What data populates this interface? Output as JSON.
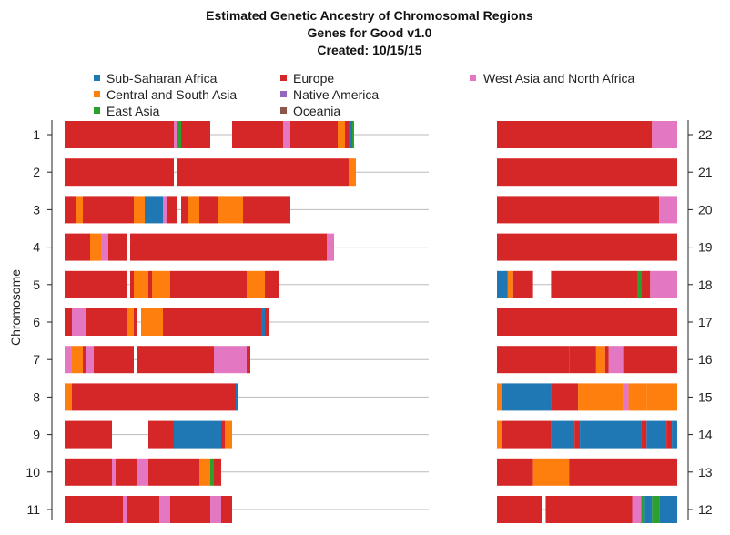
{
  "chart_data": {
    "type": "ancestry-karyogram",
    "title": [
      "Estimated Genetic Ancestry of Chromosomal Regions",
      "Genes for Good v1.0",
      "Created: 10/15/15"
    ],
    "ylabel": "Chromosome",
    "left_axis_ticks": [
      "1",
      "2",
      "3",
      "4",
      "5",
      "6",
      "7",
      "8",
      "9",
      "10",
      "11"
    ],
    "right_axis_ticks": [
      "22",
      "21",
      "20",
      "19",
      "18",
      "17",
      "16",
      "15",
      "14",
      "13",
      "12"
    ],
    "legend": [
      {
        "key": "afr",
        "label": "Sub-Saharan Africa",
        "color": "#1f77b4"
      },
      {
        "key": "eur",
        "label": "Europe",
        "color": "#d62728"
      },
      {
        "key": "was",
        "label": "West Asia and North Africa",
        "color": "#e377c2"
      },
      {
        "key": "csa",
        "label": "Central and South Asia",
        "color": "#ff7f0e"
      },
      {
        "key": "nam",
        "label": "Native America",
        "color": "#9467bd"
      },
      {
        "key": "eas",
        "label": "East Asia",
        "color": "#2ca02c"
      },
      {
        "key": "oce",
        "label": "Oceania",
        "color": "#8c564b"
      }
    ],
    "rows": [
      {
        "left": {
          "chrom": "1",
          "segments": [
            [
              0.0,
              0.3,
              "eur"
            ],
            [
              0.3,
              0.31,
              "was"
            ],
            [
              0.31,
              0.32,
              "eas"
            ],
            [
              0.32,
              0.4,
              "eur"
            ],
            [
              0.46,
              0.6,
              "eur"
            ],
            [
              0.6,
              0.62,
              "was"
            ],
            [
              0.62,
              0.75,
              "eur"
            ],
            [
              0.75,
              0.77,
              "csa"
            ],
            [
              0.77,
              0.78,
              "eur"
            ],
            [
              0.78,
              0.79,
              "afr"
            ],
            [
              0.79,
              0.795,
              "eas"
            ]
          ]
        },
        "right": {
          "chrom": "22",
          "segments": [
            [
              0.0,
              0.86,
              "eur"
            ],
            [
              0.86,
              1.0,
              "was"
            ]
          ]
        }
      },
      {
        "left": {
          "chrom": "2",
          "segments": [
            [
              0.0,
              0.3,
              "eur"
            ],
            [
              0.31,
              0.78,
              "eur"
            ],
            [
              0.78,
              0.8,
              "csa"
            ]
          ]
        },
        "right": {
          "chrom": "21",
          "segments": [
            [
              0.0,
              1.0,
              "eur"
            ]
          ]
        }
      },
      {
        "left": {
          "chrom": "3",
          "segments": [
            [
              0.0,
              0.03,
              "eur"
            ],
            [
              0.03,
              0.05,
              "csa"
            ],
            [
              0.05,
              0.19,
              "eur"
            ],
            [
              0.19,
              0.22,
              "csa"
            ],
            [
              0.22,
              0.27,
              "afr"
            ],
            [
              0.27,
              0.28,
              "was"
            ],
            [
              0.28,
              0.31,
              "eur"
            ],
            [
              0.32,
              0.34,
              "eur"
            ],
            [
              0.34,
              0.37,
              "csa"
            ],
            [
              0.37,
              0.42,
              "eur"
            ],
            [
              0.42,
              0.49,
              "csa"
            ],
            [
              0.49,
              0.62,
              "eur"
            ]
          ]
        },
        "right": {
          "chrom": "20",
          "segments": [
            [
              0.0,
              0.9,
              "eur"
            ],
            [
              0.9,
              1.0,
              "was"
            ]
          ]
        }
      },
      {
        "left": {
          "chrom": "4",
          "segments": [
            [
              0.0,
              0.07,
              "eur"
            ],
            [
              0.07,
              0.1,
              "csa"
            ],
            [
              0.1,
              0.12,
              "was"
            ],
            [
              0.12,
              0.17,
              "eur"
            ],
            [
              0.18,
              0.72,
              "eur"
            ],
            [
              0.72,
              0.74,
              "was"
            ]
          ]
        },
        "right": {
          "chrom": "19",
          "segments": [
            [
              0.0,
              1.0,
              "eur"
            ]
          ]
        }
      },
      {
        "left": {
          "chrom": "5",
          "segments": [
            [
              0.0,
              0.17,
              "eur"
            ],
            [
              0.18,
              0.19,
              "eur"
            ],
            [
              0.19,
              0.23,
              "csa"
            ],
            [
              0.23,
              0.24,
              "eur"
            ],
            [
              0.24,
              0.29,
              "csa"
            ],
            [
              0.29,
              0.5,
              "eur"
            ],
            [
              0.5,
              0.55,
              "csa"
            ],
            [
              0.55,
              0.59,
              "eur"
            ]
          ]
        },
        "right": {
          "chrom": "18",
          "segments": [
            [
              0.0,
              0.06,
              "afr"
            ],
            [
              0.06,
              0.09,
              "csa"
            ],
            [
              0.09,
              0.2,
              "eur"
            ],
            [
              0.3,
              0.78,
              "eur"
            ],
            [
              0.78,
              0.8,
              "eas"
            ],
            [
              0.8,
              0.85,
              "eur"
            ],
            [
              0.85,
              1.0,
              "was"
            ]
          ]
        }
      },
      {
        "left": {
          "chrom": "6",
          "segments": [
            [
              0.0,
              0.02,
              "eur"
            ],
            [
              0.02,
              0.06,
              "was"
            ],
            [
              0.06,
              0.17,
              "eur"
            ],
            [
              0.17,
              0.19,
              "csa"
            ],
            [
              0.19,
              0.2,
              "eur"
            ],
            [
              0.21,
              0.27,
              "csa"
            ],
            [
              0.27,
              0.54,
              "eur"
            ],
            [
              0.54,
              0.55,
              "afr"
            ],
            [
              0.55,
              0.56,
              "eur"
            ]
          ]
        },
        "right": {
          "chrom": "17",
          "segments": [
            [
              0.0,
              1.0,
              "eur"
            ]
          ]
        }
      },
      {
        "left": {
          "chrom": "7",
          "segments": [
            [
              0.0,
              0.02,
              "was"
            ],
            [
              0.02,
              0.05,
              "csa"
            ],
            [
              0.05,
              0.06,
              "eur"
            ],
            [
              0.06,
              0.08,
              "was"
            ],
            [
              0.08,
              0.19,
              "eur"
            ],
            [
              0.2,
              0.41,
              "eur"
            ],
            [
              0.41,
              0.5,
              "was"
            ],
            [
              0.5,
              0.51,
              "eur"
            ]
          ]
        },
        "right": {
          "chrom": "16",
          "segments": [
            [
              0.0,
              0.4,
              "eur"
            ],
            [
              0.4,
              0.55,
              "eur"
            ],
            [
              0.55,
              0.6,
              "csa"
            ],
            [
              0.6,
              0.62,
              "eur"
            ],
            [
              0.62,
              0.7,
              "was"
            ],
            [
              0.7,
              1.0,
              "eur"
            ]
          ]
        }
      },
      {
        "left": {
          "chrom": "8",
          "segments": [
            [
              0.0,
              0.02,
              "csa"
            ],
            [
              0.02,
              0.47,
              "eur"
            ],
            [
              0.47,
              0.475,
              "afr"
            ]
          ]
        },
        "right": {
          "chrom": "15",
          "segments": [
            [
              0.0,
              0.03,
              "csa"
            ],
            [
              0.03,
              0.3,
              "afr"
            ],
            [
              0.3,
              0.45,
              "eur"
            ],
            [
              0.45,
              0.7,
              "csa"
            ],
            [
              0.7,
              0.73,
              "was"
            ],
            [
              0.73,
              0.83,
              "csa"
            ],
            [
              0.83,
              1.0,
              "csa"
            ]
          ]
        }
      },
      {
        "left": {
          "chrom": "9",
          "segments": [
            [
              0.0,
              0.13,
              "eur"
            ],
            [
              0.23,
              0.3,
              "eur"
            ],
            [
              0.3,
              0.43,
              "afr"
            ],
            [
              0.43,
              0.44,
              "eur"
            ],
            [
              0.44,
              0.46,
              "csa"
            ]
          ]
        },
        "right": {
          "chrom": "14",
          "segments": [
            [
              0.0,
              0.03,
              "csa"
            ],
            [
              0.03,
              0.3,
              "eur"
            ],
            [
              0.3,
              0.43,
              "afr"
            ],
            [
              0.43,
              0.46,
              "eur"
            ],
            [
              0.46,
              0.8,
              "afr"
            ],
            [
              0.8,
              0.83,
              "eur"
            ],
            [
              0.83,
              0.94,
              "afr"
            ],
            [
              0.94,
              0.97,
              "eur"
            ],
            [
              0.97,
              1.0,
              "afr"
            ]
          ]
        }
      },
      {
        "left": {
          "chrom": "10",
          "segments": [
            [
              0.0,
              0.13,
              "eur"
            ],
            [
              0.13,
              0.14,
              "was"
            ],
            [
              0.14,
              0.2,
              "eur"
            ],
            [
              0.2,
              0.23,
              "was"
            ],
            [
              0.23,
              0.37,
              "eur"
            ],
            [
              0.37,
              0.4,
              "csa"
            ],
            [
              0.4,
              0.41,
              "eas"
            ],
            [
              0.41,
              0.43,
              "eur"
            ]
          ]
        },
        "right": {
          "chrom": "13",
          "segments": [
            [
              0.0,
              0.2,
              "eur"
            ],
            [
              0.2,
              0.4,
              "csa"
            ],
            [
              0.4,
              1.0,
              "eur"
            ]
          ]
        }
      },
      {
        "left": {
          "chrom": "11",
          "segments": [
            [
              0.0,
              0.16,
              "eur"
            ],
            [
              0.16,
              0.17,
              "was"
            ],
            [
              0.17,
              0.26,
              "eur"
            ],
            [
              0.26,
              0.29,
              "was"
            ],
            [
              0.29,
              0.4,
              "eur"
            ],
            [
              0.4,
              0.43,
              "was"
            ],
            [
              0.43,
              0.46,
              "eur"
            ]
          ]
        },
        "right": {
          "chrom": "12",
          "segments": [
            [
              0.0,
              0.25,
              "eur"
            ],
            [
              0.27,
              0.75,
              "eur"
            ],
            [
              0.75,
              0.8,
              "was"
            ],
            [
              0.8,
              0.82,
              "eas"
            ],
            [
              0.82,
              0.86,
              "afr"
            ],
            [
              0.86,
              0.9,
              "eas"
            ],
            [
              0.9,
              1.0,
              "afr"
            ]
          ]
        }
      }
    ]
  }
}
